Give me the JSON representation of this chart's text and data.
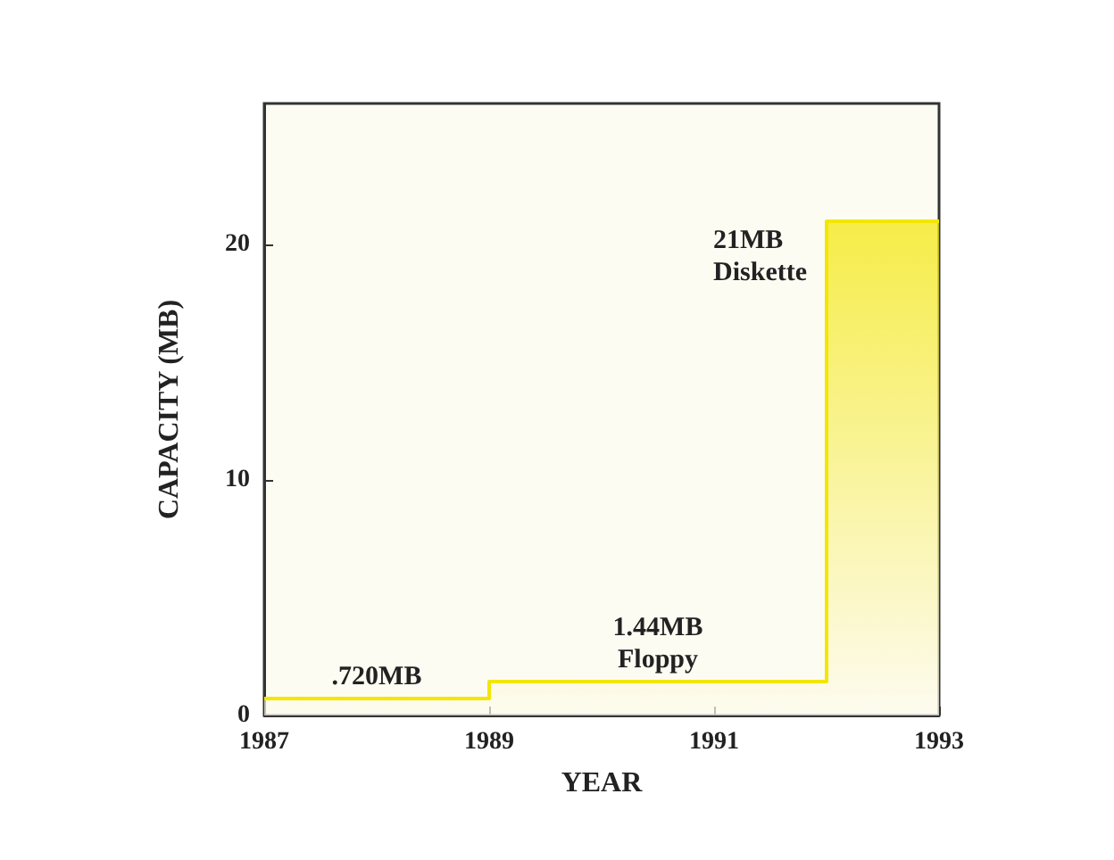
{
  "chart_data": {
    "type": "area",
    "xlabel": "YEAR",
    "ylabel": "CAPACITY (MB)",
    "x": [
      1987,
      1989,
      1989,
      1992,
      1992,
      1993
    ],
    "series": [
      {
        "color": "#f3e600",
        "values": [
          0.72,
          0.72,
          1.44,
          1.44,
          21,
          21
        ]
      }
    ],
    "xlim": [
      1987,
      1993
    ],
    "xticks": [
      1987,
      1989,
      1991,
      1993
    ],
    "ylim": [
      0,
      26
    ],
    "yticks": [
      0,
      10,
      20
    ],
    "grid": false,
    "marker": "none",
    "annotations": [
      {
        "text": ".720MB",
        "x": 1988,
        "y": 0.72
      },
      {
        "text": "1.44MB\nFloppy",
        "x": 1990.5,
        "y": 1.44
      },
      "21MB\nDiskette"
    ]
  }
}
